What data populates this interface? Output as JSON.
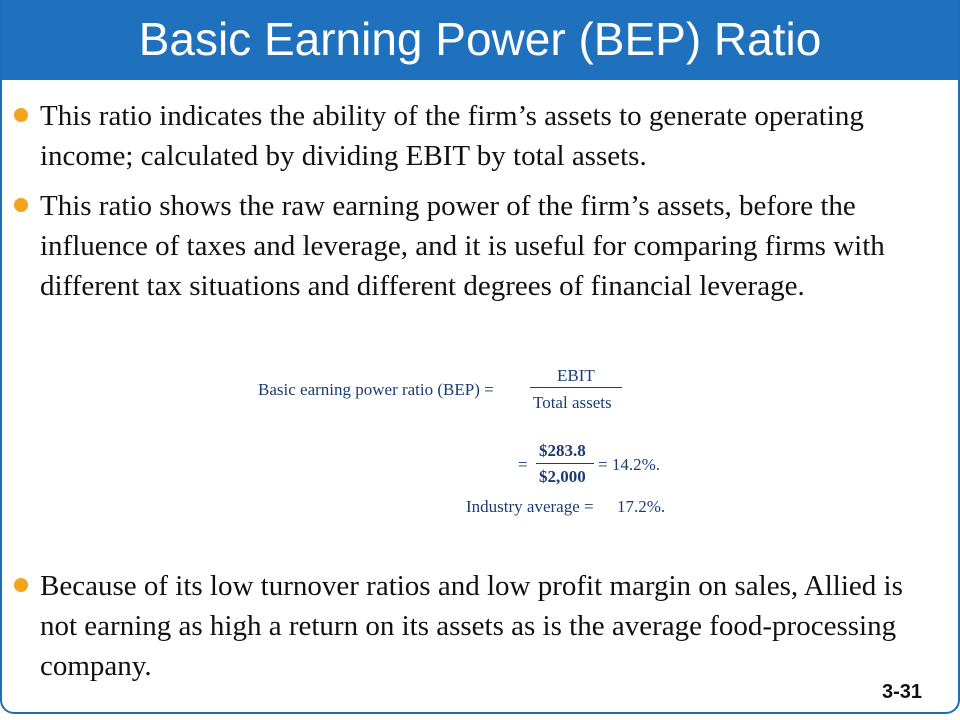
{
  "title": "Basic Earning Power (BEP) Ratio",
  "bullets": [
    "This ratio indicates the ability of the firm’s assets to generate operating income; calculated by dividing EBIT by total assets.",
    "This ratio shows the raw earning power of the firm’s assets, before the influence of taxes and leverage, and it is useful for comparing firms with different tax situations and different degrees of financial leverage.",
    "Because of its low turnover ratios and low profit margin on sales, Allied is not earning as high a return on its assets as is the average food-processing company."
  ],
  "formula": {
    "lhs": "Basic earning power ratio (BEP) =",
    "numerator": "EBIT",
    "denominator": "Total assets",
    "eq2_equals": "=",
    "eq2_numerator": "$283.8",
    "eq2_denominator": "$2,000",
    "eq2_result": "= 14.2%.",
    "industry_label": "Industry average =",
    "industry_value": "17.2%."
  },
  "slide_number": "3-31",
  "colors": {
    "title_bar": "#1f70bd",
    "bullet": "#f0a51c",
    "formula_text": "#1a3c72"
  }
}
